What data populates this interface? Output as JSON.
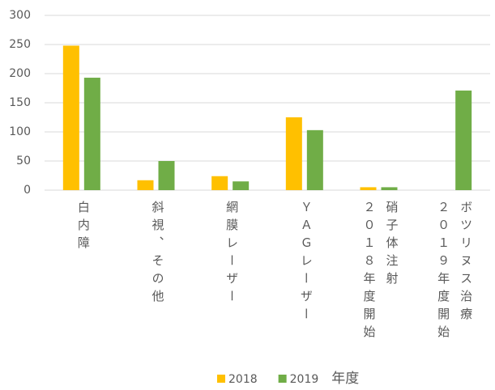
{
  "chart_data": {
    "type": "bar",
    "categories": [
      "白内障",
      "斜視、その他",
      "網膜レーザー",
      "ＹＡＧレーザー",
      "硝子体注射\n２０１８年度開始",
      "ボツリヌス治療\n２０１９年度開始"
    ],
    "series": [
      {
        "name": "2018",
        "color": "#FFC000",
        "values": [
          248,
          17,
          24,
          125,
          5,
          0
        ]
      },
      {
        "name": "2019",
        "color": "#70AD47",
        "values": [
          193,
          50,
          15,
          103,
          5,
          171
        ]
      }
    ],
    "legend_title": "年度",
    "ylim": [
      0,
      300
    ],
    "yticks": [
      0,
      50,
      100,
      150,
      200,
      250,
      300
    ],
    "grid": true
  }
}
